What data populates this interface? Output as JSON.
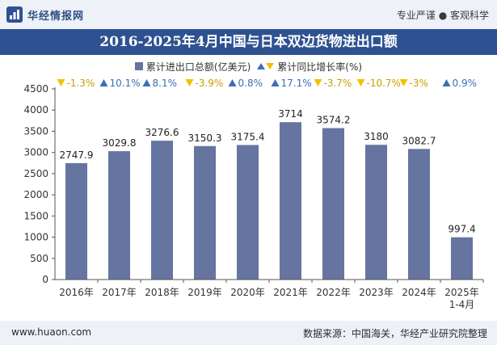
{
  "header": {
    "brand_name": "华经情报网",
    "tagline": "专业严谨 ● 客观科学"
  },
  "footer": {
    "url": "www.huaon.com",
    "source": "数据来源：中国海关，华经产业研究院整理"
  },
  "colors": {
    "bar": "#6674a0",
    "title_bg": "#2e5191",
    "up": "#3b6fb6",
    "down": "#f2c200"
  },
  "chart_data": {
    "type": "bar",
    "title": "2016-2025年4月中国与日本双边货物进出口额",
    "categories": [
      "2016年",
      "2017年",
      "2018年",
      "2019年",
      "2020年",
      "2021年",
      "2022年",
      "2023年",
      "2024年",
      "2025年"
    ],
    "category_sublabels": [
      "",
      "",
      "",
      "",
      "",
      "",
      "",
      "",
      "",
      "1-4月"
    ],
    "series": [
      {
        "name": "累计进出口总额(亿美元)",
        "values": [
          2747.9,
          3029.8,
          3276.6,
          3150.3,
          3175.4,
          3714,
          3574.2,
          3180,
          3082.7,
          997.4
        ],
        "value_labels": [
          "2747.9",
          "3029.8",
          "3276.6",
          "3150.3",
          "3175.4",
          "3714",
          "3574.2",
          "3180",
          "3082.7",
          "997.4"
        ]
      },
      {
        "name": "累计同比增长率(%)",
        "values": [
          -1.3,
          10.1,
          8.1,
          -3.9,
          0.8,
          17.1,
          -3.7,
          -10.7,
          -3,
          0.9
        ],
        "value_labels": [
          "-1.3%",
          "10.1%",
          "8.1%",
          "-3.9%",
          "0.8%",
          "17.1%",
          "-3.7%",
          "-10.7%",
          "-3%",
          "0.9%"
        ]
      }
    ],
    "y_ticks": [
      "0",
      "500",
      "1000",
      "1500",
      "2000",
      "2500",
      "3000",
      "3500",
      "4000",
      "4500"
    ],
    "ylim": [
      0,
      4500
    ],
    "grid": false,
    "legend_position": "top-center"
  }
}
